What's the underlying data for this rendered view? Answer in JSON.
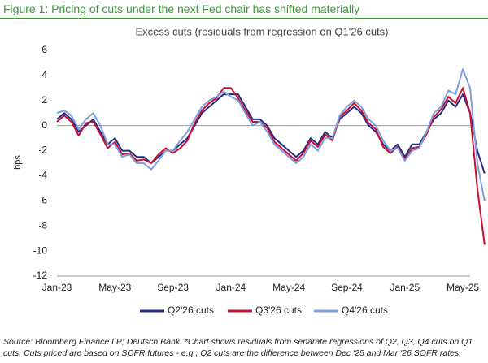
{
  "chart_data": {
    "type": "line",
    "figure_title": "Figure 1: Pricing of cuts under the next Fed chair has shifted materially",
    "title": "Excess cuts (residuals from regression on Q1'26 cuts)",
    "y_label": "bps",
    "source": "Source: Bloomberg Finance LP; Deutsch Bank. *Chart shows residuals from separate regressions of Q2, Q3, Q4 cuts on Q1 cuts. Cuts priced are based on SOFR futures - e.g., Q2 cuts are the difference between Dec '25 and Mar '26 SOFR rates.",
    "categories": [
      "Jan-23",
      null,
      null,
      null,
      null,
      null,
      null,
      null,
      "May-23",
      null,
      null,
      null,
      null,
      null,
      null,
      null,
      "Sep-23",
      null,
      null,
      null,
      null,
      null,
      null,
      null,
      "Jan-24",
      null,
      null,
      null,
      null,
      null,
      null,
      null,
      "May-24",
      null,
      null,
      null,
      null,
      null,
      null,
      null,
      "Sep-24",
      null,
      null,
      null,
      null,
      null,
      null,
      null,
      "Jan-25",
      null,
      null,
      null,
      null,
      null,
      null,
      null,
      "May-25",
      null,
      null,
      null
    ],
    "series": [
      {
        "name": "Q2'26 cuts",
        "color": "#1f2d86",
        "values": [
          0.5,
          1,
          0.5,
          -0.5,
          0,
          0.5,
          -0.5,
          -1.5,
          -1,
          -2,
          -2,
          -2.5,
          -2.5,
          -3,
          -2.5,
          -2,
          -2,
          -1.5,
          -1,
          0,
          1,
          1.5,
          2,
          2.5,
          2.5,
          2.5,
          1.5,
          0.5,
          0.5,
          0,
          -1,
          -1.5,
          -2,
          -2.5,
          -2,
          -1,
          -1.5,
          -0.5,
          -1,
          0.5,
          1,
          1.5,
          1,
          0,
          -0.5,
          -1.5,
          -2,
          -1.5,
          -2.5,
          -1.5,
          -1.5,
          -0.5,
          0.5,
          1,
          2,
          1.5,
          2.5,
          1,
          -2,
          -3.8
        ]
      },
      {
        "name": "Q3'26 cuts",
        "color": "#c8102e",
        "values": [
          0.3,
          0.8,
          0.3,
          -0.8,
          0.2,
          0.3,
          -0.7,
          -1.8,
          -1.3,
          -2.3,
          -2.2,
          -2.8,
          -2.7,
          -3,
          -2.3,
          -1.8,
          -2.2,
          -1.8,
          -1.2,
          0.2,
          1.2,
          1.8,
          2.2,
          3,
          3,
          2.2,
          1.2,
          0.3,
          0.3,
          -0.2,
          -1.3,
          -1.8,
          -2.3,
          -2.8,
          -2.2,
          -1.2,
          -1.7,
          -0.7,
          -1.2,
          0.7,
          1.2,
          1.8,
          1.2,
          0.2,
          -0.3,
          -1.7,
          -2.2,
          -1.7,
          -2.7,
          -1.8,
          -1.7,
          -0.7,
          0.7,
          1.3,
          2.3,
          1.8,
          3,
          1,
          -5,
          -9.5
        ]
      },
      {
        "name": "Q4'26 cuts",
        "color": "#7f9ee0",
        "values": [
          1,
          1.2,
          0.8,
          -0.3,
          0.5,
          1,
          0,
          -1.5,
          -1.5,
          -2.5,
          -2.3,
          -3,
          -3,
          -3.5,
          -2.8,
          -2,
          -2,
          -1.2,
          -0.5,
          0.5,
          1.5,
          2,
          2.3,
          2.7,
          2.3,
          2,
          1,
          0,
          0.3,
          -0.5,
          -1.5,
          -2,
          -2.5,
          -3,
          -2.5,
          -1.5,
          -2,
          -1,
          -1,
          0.8,
          1.5,
          2,
          1.5,
          0.5,
          0,
          -1.2,
          -2,
          -1.8,
          -2.8,
          -2,
          -1.8,
          -0.5,
          1,
          1.5,
          2.8,
          2.5,
          4.5,
          3,
          -3,
          -6
        ]
      }
    ],
    "ylim": [
      -12,
      6
    ],
    "yticks": [
      -12,
      -10,
      -8,
      -6,
      -4,
      -2,
      0,
      2,
      4,
      6
    ],
    "grid": false,
    "legend": "bottom"
  }
}
